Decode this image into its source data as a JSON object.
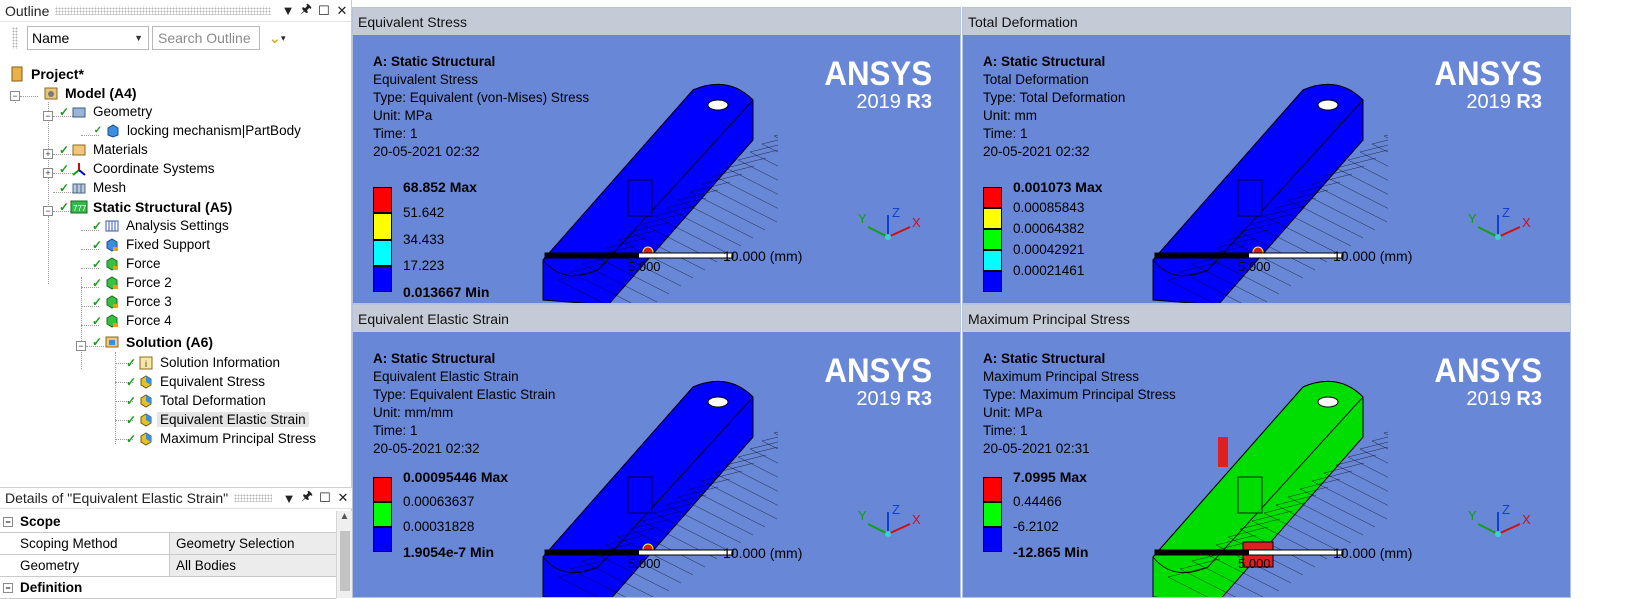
{
  "outline": {
    "title": "Outline",
    "filter_combo": "Name",
    "search_placeholder": "Search Outline",
    "tree": {
      "project": "Project*",
      "model": "Model (A4)",
      "geometry": "Geometry",
      "part": "locking mechanism|PartBody",
      "materials": "Materials",
      "coordinate_systems": "Coordinate Systems",
      "mesh": "Mesh",
      "static_structural": "Static Structural (A5)",
      "analysis_settings": "Analysis Settings",
      "fixed_support": "Fixed Support",
      "force1": "Force",
      "force2": "Force 2",
      "force3": "Force 3",
      "force4": "Force 4",
      "solution": "Solution (A6)",
      "solution_information": "Solution Information",
      "equivalent_stress": "Equivalent Stress",
      "total_deformation": "Total Deformation",
      "equivalent_elastic_strain": "Equivalent Elastic Strain",
      "maximum_principal_stress": "Maximum Principal Stress"
    }
  },
  "details": {
    "title": "Details of \"Equivalent Elastic Strain\"",
    "scope_group": "Scope",
    "scoping_method_key": "Scoping Method",
    "scoping_method_val": "Geometry Selection",
    "geometry_key": "Geometry",
    "geometry_val": "All Bodies",
    "definition_group": "Definition"
  },
  "brand": {
    "logo": "ANSYS",
    "version_prefix": "2019 ",
    "version_bold": "R3"
  },
  "scale_label": "10.000 (mm)",
  "scale_ghost": "5.000",
  "viewports": [
    {
      "title": "Equivalent Stress",
      "analysis": "A: Static Structural",
      "result": "Equivalent Stress",
      "type": "Type: Equivalent (von-Mises) Stress",
      "unit": "Unit: MPa",
      "time": "Time: 1",
      "date": "20-05-2021 02:32",
      "legend": [
        "68.852 Max",
        "51.642",
        "34.433",
        "17.223",
        "0.013667 Min"
      ],
      "colors": [
        "#ff0000",
        "#ffff00",
        "#00ffff",
        "#0000ff"
      ],
      "mesh_color": "#0000ff"
    },
    {
      "title": "Total Deformation",
      "analysis": "A: Static Structural",
      "result": "Total Deformation",
      "type": "Type: Total Deformation",
      "unit": "Unit: mm",
      "time": "Time: 1",
      "date": "20-05-2021 02:32",
      "legend": [
        "0.001073 Max",
        "0.00085843",
        "0.00064382",
        "0.00042921",
        "0.00021461"
      ],
      "colors": [
        "#ff0000",
        "#ffff00",
        "#00ff00",
        "#00ffff",
        "#0000ff"
      ],
      "mesh_color": "#0000ff"
    },
    {
      "title": "Equivalent Elastic Strain",
      "analysis": "A: Static Structural",
      "result": "Equivalent Elastic Strain",
      "type": "Type: Equivalent Elastic Strain",
      "unit": "Unit: mm/mm",
      "time": "Time: 1",
      "date": "20-05-2021 02:32",
      "legend": [
        "0.00095446 Max",
        "0.00063637",
        "0.00031828",
        "1.9054e-7 Min"
      ],
      "colors": [
        "#ff0000",
        "#00ff00",
        "#0000ff"
      ],
      "mesh_color": "#0000ff"
    },
    {
      "title": "Maximum Principal Stress",
      "analysis": "A: Static Structural",
      "result": "Maximum Principal Stress",
      "type": "Type: Maximum Principal Stress",
      "unit": "Unit: MPa",
      "time": "Time: 1",
      "date": "20-05-2021 02:31",
      "legend": [
        "7.0995 Max",
        "0.44466",
        "-6.2102",
        "-12.865 Min"
      ],
      "colors": [
        "#ff0000",
        "#00ff00",
        "#0000ff"
      ],
      "mesh_color": "#00dd00"
    }
  ]
}
